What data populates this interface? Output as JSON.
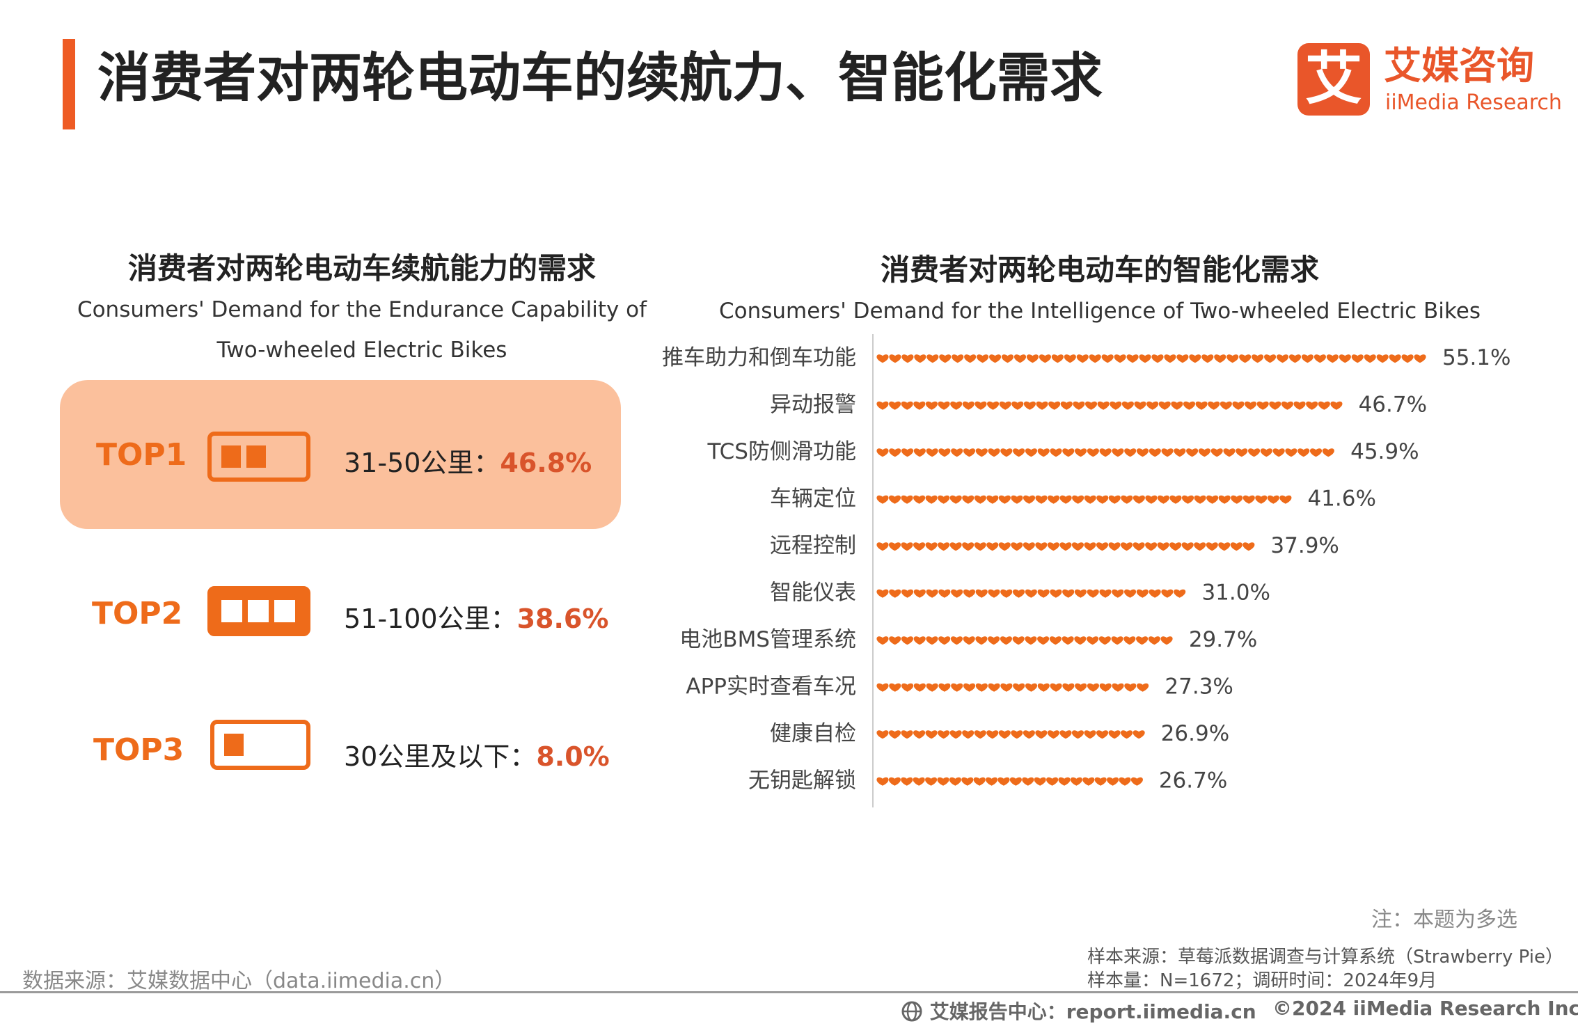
{
  "page_title": "消费者对两轮电动车的续航力、智能化需求",
  "logo": {
    "cn": "艾媒咨询",
    "en": "iiMedia Research",
    "mark": "艾"
  },
  "left_section": {
    "title_cn": "消费者对两轮电动车续航能力的需求",
    "title_en": "Consumers' Demand for the Endurance Capability of Two-wheeled Electric Bikes",
    "items": [
      {
        "rank": "TOP1",
        "label": "31-50公里：",
        "value": "46.8%",
        "battery_level": 2,
        "icon": "battery-half-icon"
      },
      {
        "rank": "TOP2",
        "label": "51-100公里：",
        "value": "38.6%",
        "battery_level": 3,
        "icon": "battery-full-icon"
      },
      {
        "rank": "TOP3",
        "label": "30公里及以下：",
        "value": "8.0%",
        "battery_level": 1,
        "icon": "battery-low-icon"
      }
    ]
  },
  "right_section": {
    "title_cn": "消费者对两轮电动车的智能化需求",
    "title_en": "Consumers' Demand for the Intelligence of Two-wheeled Electric Bikes"
  },
  "chart_data": {
    "type": "bar",
    "orientation": "horizontal",
    "marker": "heart",
    "color": "#ee6b1a",
    "categories": [
      "推车助力和倒车功能",
      "异动报警",
      "TCS防侧滑功能",
      "车辆定位",
      "远程控制",
      "智能仪表",
      "电池BMS管理系统",
      "APP实时查看车况",
      "健康自检",
      "无钥匙解锁"
    ],
    "values": [
      55.1,
      46.7,
      45.9,
      41.6,
      37.9,
      31.0,
      29.7,
      27.3,
      26.9,
      26.7
    ],
    "value_labels": [
      "55.1%",
      "46.7%",
      "45.9%",
      "41.6%",
      "37.9%",
      "31.0%",
      "29.7%",
      "27.3%",
      "26.9%",
      "26.7%"
    ],
    "xlim": [
      0,
      55.1
    ]
  },
  "note": "注：本题为多选",
  "sample_source": "样本来源：草莓派数据调查与计算系统（Strawberry Pie）",
  "sample_size": "样本量：N=1672；调研时间：2024年9月",
  "data_source": "数据来源：艾媒数据中心（data.iimedia.cn）",
  "footer": {
    "left": "艾媒报告中心：report.iimedia.cn",
    "right": "©2024  iiMedia Research  Inc",
    "icon": "globe-icon"
  }
}
